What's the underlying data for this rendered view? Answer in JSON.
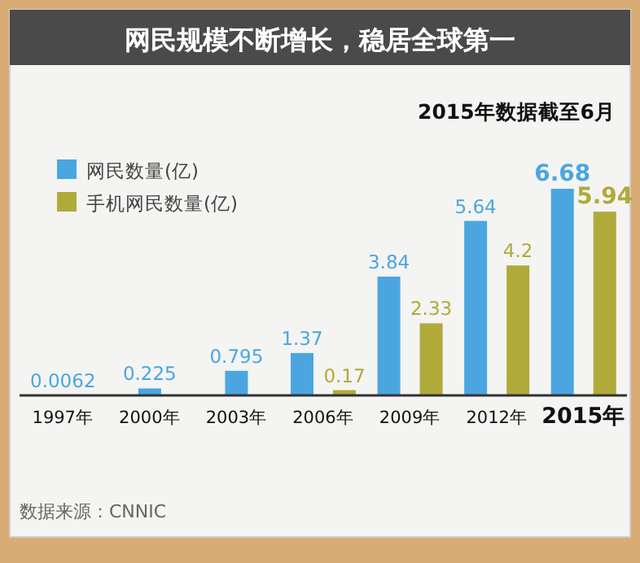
{
  "chart_data": {
    "type": "bar",
    "title": "网民规模不断增长，稳居全球第一",
    "subtitle": "2015年数据截至6月",
    "categories": [
      "1997年",
      "2000年",
      "2003年",
      "2006年",
      "2009年",
      "2012年",
      "2015年"
    ],
    "series": [
      {
        "name": "网民数量(亿)",
        "color": "#4ba6e0",
        "values": [
          0.0062,
          0.225,
          0.795,
          1.37,
          3.84,
          5.64,
          6.68
        ]
      },
      {
        "name": "手机网民数量(亿)",
        "color": "#b0aa3a",
        "values": [
          null,
          null,
          null,
          0.17,
          2.33,
          4.2,
          5.94
        ]
      }
    ],
    "data_labels": true,
    "legend": "top left",
    "grid": false,
    "annotations": [
      "数据来源：CNNIC"
    ]
  }
}
